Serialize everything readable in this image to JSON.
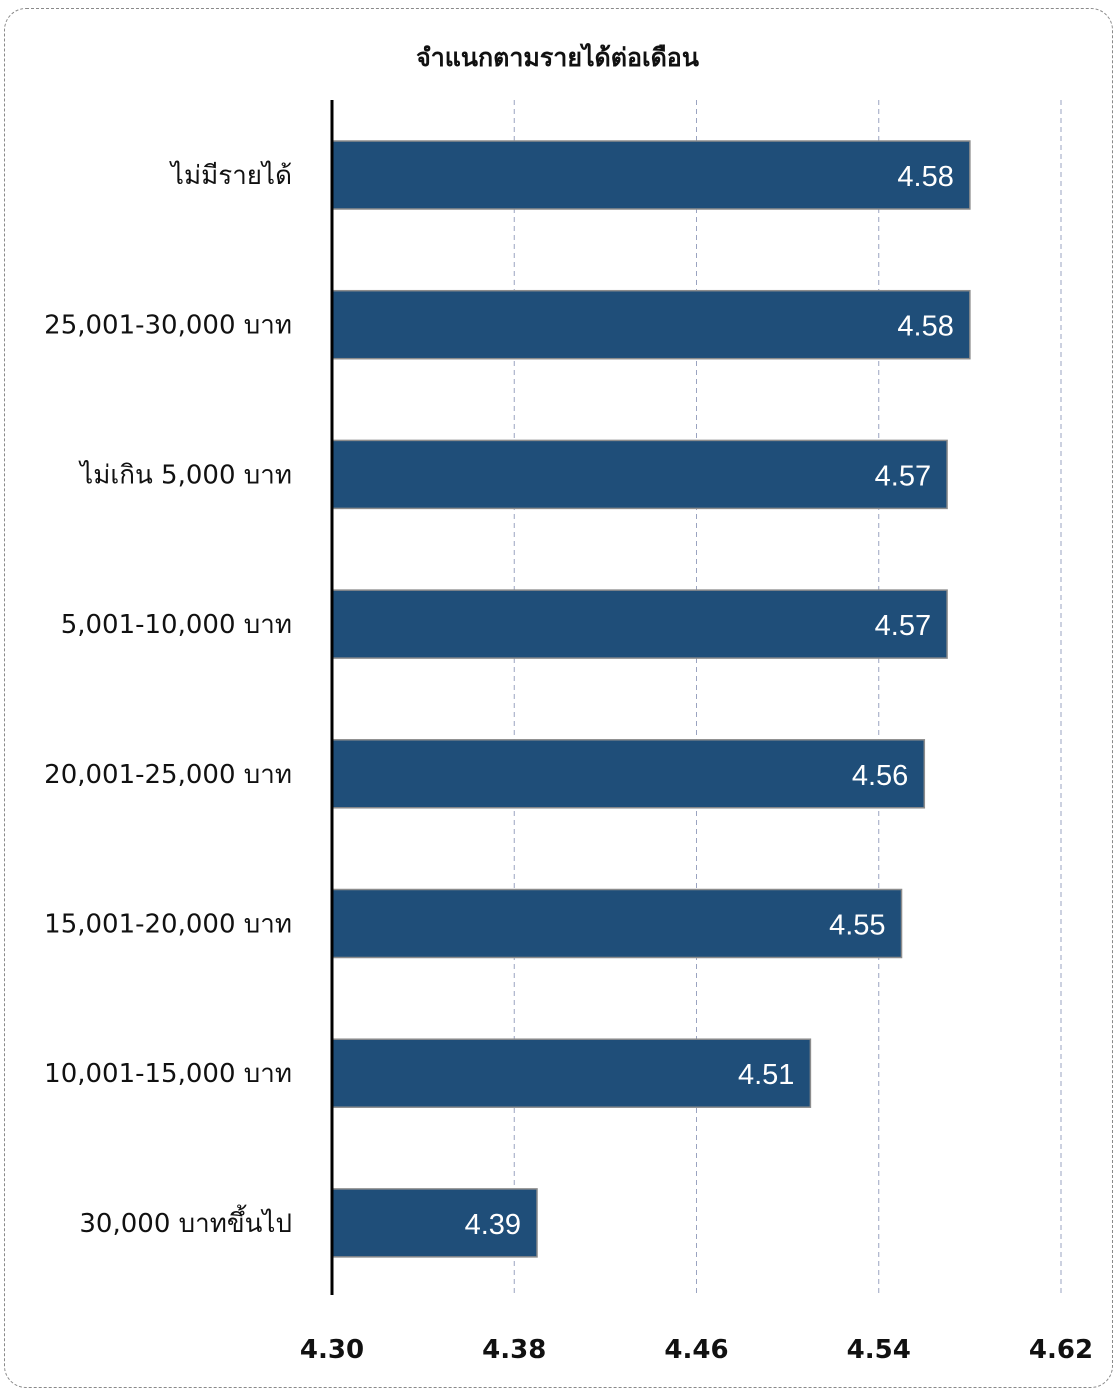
{
  "chart_data": {
    "type": "bar",
    "orientation": "horizontal",
    "title": "จำแนกตามรายได้ต่อเดือน",
    "xlabel": "",
    "ylabel": "",
    "categories": [
      "ไม่มีรายได้",
      "25,001-30,000 บาท",
      "ไม่เกิน 5,000 บาท",
      "5,001-10,000 บาท",
      "20,001-25,000 บาท",
      "15,001-20,000 บาท",
      "10,001-15,000 บาท",
      "30,000 บาทขึ้นไป"
    ],
    "values": [
      4.58,
      4.58,
      4.57,
      4.57,
      4.56,
      4.55,
      4.51,
      4.39
    ],
    "value_labels": [
      "4.58",
      "4.58",
      "4.57",
      "4.57",
      "4.56",
      "4.55",
      "4.51",
      "4.39"
    ],
    "xlim": [
      4.3,
      4.62
    ],
    "ticks": [
      "4.30",
      "4.38",
      "4.46",
      "4.54",
      "4.62"
    ],
    "tick_values": [
      4.3,
      4.38,
      4.46,
      4.54,
      4.62
    ],
    "grid": "vertical-dashed",
    "legend": "none",
    "bar_color": "#1f4e79",
    "grid_color": "#9aa3c0",
    "label_color": "#ffffff"
  }
}
